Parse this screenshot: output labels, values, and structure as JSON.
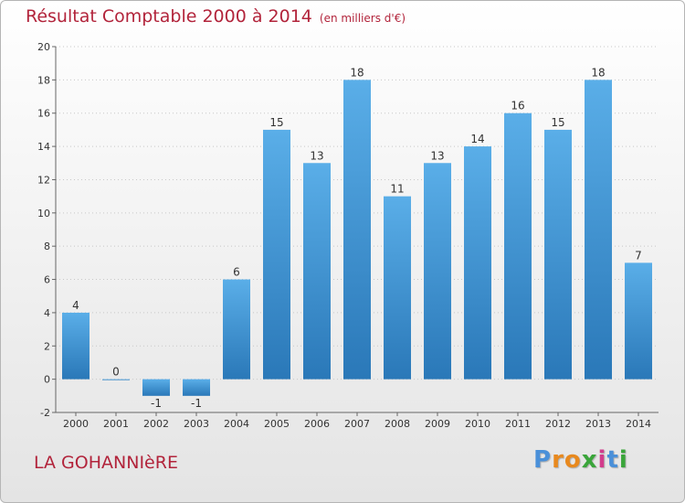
{
  "chart_data": {
    "type": "bar",
    "title": "Résultat Comptable 2000 à 2014",
    "subtitle": "(en milliers d'€)",
    "categories": [
      "2000",
      "2001",
      "2002",
      "2003",
      "2004",
      "2005",
      "2006",
      "2007",
      "2008",
      "2009",
      "2010",
      "2011",
      "2012",
      "2013",
      "2014"
    ],
    "values": [
      4,
      0,
      -1,
      -1,
      6,
      15,
      13,
      18,
      11,
      13,
      14,
      16,
      15,
      18,
      7
    ],
    "value_labels": [
      "4",
      "0",
      "-1",
      "-1",
      "6",
      "15",
      "13",
      "18",
      "11",
      "13",
      "14",
      "16",
      "15",
      "18",
      "7"
    ],
    "ylim": [
      -2,
      20
    ],
    "yticks": [
      -2,
      0,
      2,
      4,
      6,
      8,
      10,
      12,
      14,
      16,
      18,
      20
    ],
    "ytick_labels": [
      "-2",
      "0",
      "2",
      "4",
      "6",
      "8",
      "10",
      "12",
      "14",
      "16",
      "18",
      "20"
    ],
    "grid": "horizontal dotted",
    "xlabel": "",
    "ylabel": ""
  },
  "footer": {
    "commune": "LA GOHANNIèRE",
    "logo_letters": [
      "P",
      "r",
      "o",
      "x",
      "i",
      "t",
      "i"
    ]
  },
  "colors": {
    "title": "#b2243b",
    "bar_top": "#5aaee8",
    "bar_bottom": "#2a78b8",
    "logo": [
      "#4a90d9",
      "#e8891e",
      "#e8891e",
      "#3aa53a",
      "#d23c8c",
      "#4a90d9",
      "#3aa53a"
    ]
  }
}
